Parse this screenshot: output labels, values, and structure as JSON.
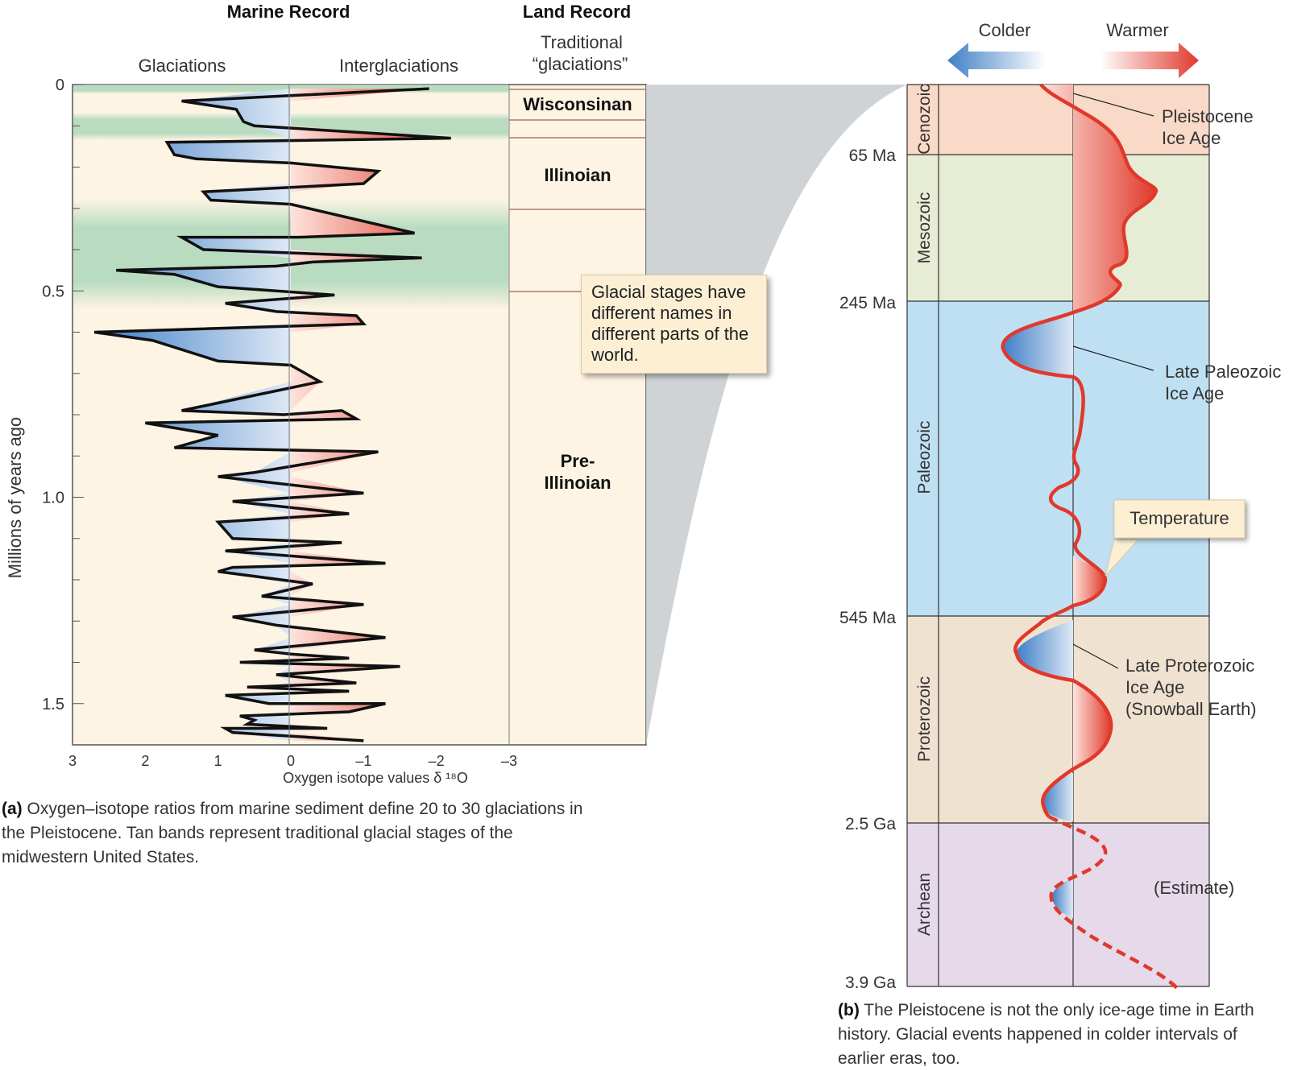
{
  "chart_data": [
    {
      "type": "line",
      "panel": "a",
      "headers": {
        "marine": "Marine Record",
        "land": "Land Record"
      },
      "subheaders": {
        "glaciations": "Glaciations",
        "interglaciations": "Interglaciations",
        "traditional": "Traditional",
        "traditional2": "“glaciations”"
      },
      "ylabel": "Millions of years ago",
      "xlabel": "Oxygen isotope values δ ¹⁸O",
      "ylim": [
        0,
        1.6
      ],
      "xlim": [
        3,
        -3
      ],
      "y_ticks": [
        "0",
        "0.5",
        "1.0",
        "1.5"
      ],
      "x_ticks": [
        "3",
        "2",
        "1",
        "0",
        "–1",
        "–2",
        "–3"
      ],
      "land_stages": [
        "Wisconsinan",
        "Illinoian",
        "Pre-",
        "Illinoian"
      ],
      "callout": "Glacial stages have different names in different parts of the world.",
      "caption_label": "(a)",
      "caption": "Oxygen–isotope ratios from marine sediment define 20 to 30 glaciations in the Pleistocene. Tan bands represent traditional glacial stages of the midwestern United States.",
      "series": [
        {
          "x": [
            -1.9,
            1.5,
            0.75,
            0.65,
            0.5,
            -2.2,
            1.7,
            1.6,
            1.3,
            0.0,
            -1.2,
            -1.0,
            1.2,
            1.1,
            0.0,
            -1.7,
            -0.1,
            1.5,
            1.2,
            -1.8,
            -0.3,
            0.2,
            2.4,
            1.6,
            1.0,
            0.2,
            -0.6,
            0.9,
            0.2,
            -0.9,
            -1.0,
            2.7,
            1.9,
            1.0,
            0.0,
            -0.4,
            1.5,
            0.1,
            -0.7,
            -0.9,
            2.0,
            1.0,
            1.6,
            -1.2,
            0.5,
            1.0,
            -1.0,
            0.8,
            -0.8,
            1.0,
            0.8,
            -0.7,
            0.9,
            -1.3,
            0.8,
            1.0,
            -0.3,
            0.4,
            -1.0,
            0.8,
            0.2,
            -1.3,
            0.5,
            0.0,
            -0.8,
            0.7,
            -1.5,
            0.2,
            -0.9,
            0.6,
            -0.8,
            0.9,
            0.3,
            -1.3,
            -0.8,
            0.7,
            0.5,
            0.6,
            -0.5,
            0.9,
            0.8,
            -1.0
          ],
          "y": [
            0.01,
            0.04,
            0.06,
            0.09,
            0.1,
            0.13,
            0.14,
            0.17,
            0.18,
            0.19,
            0.21,
            0.24,
            0.26,
            0.28,
            0.29,
            0.36,
            0.37,
            0.37,
            0.4,
            0.42,
            0.43,
            0.44,
            0.45,
            0.46,
            0.49,
            0.5,
            0.51,
            0.53,
            0.55,
            0.56,
            0.58,
            0.6,
            0.62,
            0.67,
            0.68,
            0.72,
            0.79,
            0.8,
            0.79,
            0.81,
            0.82,
            0.85,
            0.88,
            0.89,
            0.94,
            0.95,
            0.99,
            1.01,
            1.04,
            1.06,
            1.1,
            1.11,
            1.13,
            1.16,
            1.17,
            1.18,
            1.21,
            1.24,
            1.26,
            1.29,
            1.31,
            1.34,
            1.37,
            1.38,
            1.39,
            1.4,
            1.41,
            1.43,
            1.45,
            1.46,
            1.47,
            1.48,
            1.5,
            1.5,
            1.52,
            1.53,
            1.54,
            1.55,
            1.56,
            1.56,
            1.57,
            1.59
          ]
        }
      ]
    },
    {
      "type": "line",
      "panel": "b",
      "legend": {
        "colder": "Colder",
        "warmer": "Warmer"
      },
      "eras": [
        {
          "name": "Cenozoic",
          "color": "#f9d9c8"
        },
        {
          "name": "Mesozoic",
          "color": "#e7ecd5"
        },
        {
          "name": "Paleozoic",
          "color": "#bfe0f3"
        },
        {
          "name": "Proterozoic",
          "color": "#f0e2d1"
        },
        {
          "name": "Archean",
          "color": "#e6d9ea"
        }
      ],
      "era_boundaries": [
        "65 Ma",
        "245 Ma",
        "545 Ma",
        "2.5 Ga",
        "3.9 Ga"
      ],
      "ice_ages": [
        "Pleistocene",
        "Ice Age",
        "Late Paleozoic",
        "Ice Age",
        "Late Proterozoic",
        "Ice Age",
        "(Snowball Earth)"
      ],
      "temperature_label": "Temperature",
      "estimate_label": "(Estimate)",
      "caption_label": "(b)",
      "caption": "The Pleistocene is not the only ice-age time in Earth history. Glacial events happened in colder intervals of earlier eras, too.",
      "colors": {
        "warm": "#e0392b",
        "cold": "#4a86c8",
        "glacial_band": "#b9dcc0",
        "panel_bg": "#fdf4e4"
      }
    }
  ]
}
